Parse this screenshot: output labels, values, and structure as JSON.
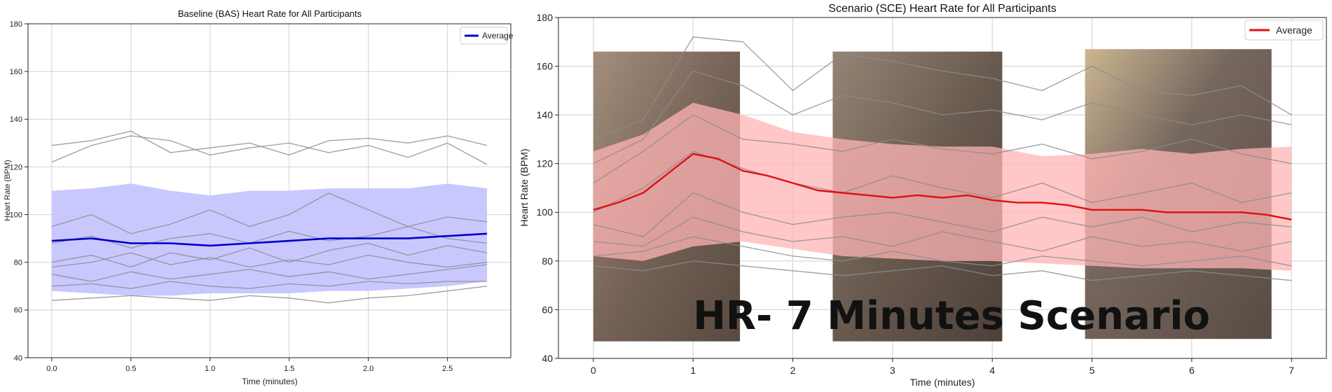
{
  "chart_data": [
    {
      "type": "line",
      "title": "Baseline (BAS) Heart Rate for All Participants",
      "xlabel": "Time (minutes)",
      "ylabel": "Heart Rate (BPM)",
      "xlim": [
        -0.15,
        2.9
      ],
      "ylim": [
        40,
        180
      ],
      "xticks": [
        0.0,
        0.5,
        1.0,
        1.5,
        2.0,
        2.5
      ],
      "xtick_labels": [
        "0.0",
        "0.5",
        "1.0",
        "1.5",
        "2.0",
        "2.5"
      ],
      "yticks": [
        40,
        60,
        80,
        100,
        120,
        140,
        160,
        180
      ],
      "ytick_labels": [
        "40",
        "60",
        "80",
        "100",
        "120",
        "140",
        "160",
        "180"
      ],
      "grid": true,
      "legend": {
        "position": "top-right",
        "entries": [
          "Average"
        ]
      },
      "colors": {
        "average": "#0000cc",
        "band": "#c8c8ff",
        "participants": "#8c8c8c"
      },
      "average": {
        "name": "Average",
        "x": [
          0.0,
          0.25,
          0.5,
          0.75,
          1.0,
          1.25,
          1.5,
          1.75,
          2.0,
          2.25,
          2.5,
          2.75
        ],
        "y": [
          89,
          90,
          88,
          88,
          87,
          88,
          89,
          90,
          90,
          90,
          91,
          92
        ]
      },
      "band": {
        "x": [
          0.0,
          0.25,
          0.5,
          0.75,
          1.0,
          1.25,
          1.5,
          1.75,
          2.0,
          2.25,
          2.5,
          2.75
        ],
        "upper": [
          110,
          111,
          113,
          110,
          108,
          110,
          110,
          111,
          111,
          111,
          113,
          111
        ],
        "lower": [
          68,
          67,
          66,
          66,
          67,
          67,
          67,
          68,
          68,
          69,
          70,
          72
        ]
      },
      "participants": [
        {
          "x": [
            0.0,
            0.25,
            0.5,
            0.75,
            1.0,
            1.25,
            1.5,
            1.75,
            2.0,
            2.25,
            2.5,
            2.75
          ],
          "y": [
            129,
            131,
            135,
            126,
            128,
            130,
            125,
            131,
            132,
            130,
            133,
            129
          ]
        },
        {
          "x": [
            0.0,
            0.25,
            0.5,
            0.75,
            1.0,
            1.25,
            1.5,
            1.75,
            2.0,
            2.25,
            2.5,
            2.75
          ],
          "y": [
            122,
            129,
            133,
            131,
            125,
            128,
            130,
            126,
            129,
            124,
            130,
            121
          ]
        },
        {
          "x": [
            0.0,
            0.25,
            0.5,
            0.75,
            1.0,
            1.25,
            1.5,
            1.75,
            2.0,
            2.25,
            2.5,
            2.75
          ],
          "y": [
            95,
            100,
            92,
            96,
            102,
            95,
            100,
            109,
            102,
            95,
            99,
            97
          ]
        },
        {
          "x": [
            0.0,
            0.25,
            0.5,
            0.75,
            1.0,
            1.25,
            1.5,
            1.75,
            2.0,
            2.25,
            2.5,
            2.75
          ],
          "y": [
            88,
            91,
            86,
            90,
            92,
            88,
            93,
            89,
            91,
            95,
            90,
            88
          ]
        },
        {
          "x": [
            0.0,
            0.25,
            0.5,
            0.75,
            1.0,
            1.25,
            1.5,
            1.75,
            2.0,
            2.25,
            2.5,
            2.75
          ],
          "y": [
            80,
            83,
            78,
            84,
            81,
            86,
            80,
            85,
            88,
            83,
            87,
            84
          ]
        },
        {
          "x": [
            0.0,
            0.25,
            0.5,
            0.75,
            1.0,
            1.25,
            1.5,
            1.75,
            2.0,
            2.25,
            2.5,
            2.75
          ],
          "y": [
            78,
            80,
            84,
            79,
            82,
            78,
            81,
            79,
            83,
            80,
            78,
            80
          ]
        },
        {
          "x": [
            0.0,
            0.25,
            0.5,
            0.75,
            1.0,
            1.25,
            1.5,
            1.75,
            2.0,
            2.25,
            2.5,
            2.75
          ],
          "y": [
            75,
            72,
            76,
            73,
            75,
            77,
            74,
            76,
            73,
            75,
            77,
            79
          ]
        },
        {
          "x": [
            0.0,
            0.25,
            0.5,
            0.75,
            1.0,
            1.25,
            1.5,
            1.75,
            2.0,
            2.25,
            2.5,
            2.75
          ],
          "y": [
            70,
            71,
            69,
            72,
            70,
            69,
            71,
            70,
            72,
            71,
            72,
            72
          ]
        },
        {
          "x": [
            0.0,
            0.25,
            0.5,
            0.75,
            1.0,
            1.25,
            1.5,
            1.75,
            2.0,
            2.25,
            2.5,
            2.75
          ],
          "y": [
            64,
            65,
            66,
            65,
            64,
            66,
            65,
            63,
            65,
            66,
            68,
            70
          ]
        }
      ]
    },
    {
      "type": "line",
      "title": "Scenario (SCE) Heart Rate for All Participants",
      "xlabel": "Time (minutes)",
      "ylabel": "Heart Rate (BPM)",
      "xlim": [
        -0.35,
        7.35
      ],
      "ylim": [
        40,
        180
      ],
      "xticks": [
        0,
        1,
        2,
        3,
        4,
        5,
        6,
        7
      ],
      "xtick_labels": [
        "0",
        "1",
        "2",
        "3",
        "4",
        "5",
        "6",
        "7"
      ],
      "yticks": [
        40,
        60,
        80,
        100,
        120,
        140,
        160,
        180
      ],
      "ytick_labels": [
        "40",
        "60",
        "80",
        "100",
        "120",
        "140",
        "160",
        "180"
      ],
      "grid": true,
      "legend": {
        "position": "top-right",
        "entries": [
          "Average"
        ]
      },
      "colors": {
        "average": "#dd1111",
        "band": "#ffb4b4",
        "participants": "#8c8c8c",
        "video_frames": "#6e5a4a"
      },
      "annotation": "HR- 7 Minutes Scenario",
      "video_frames": [
        {
          "x_start": 0.0,
          "x_end": 1.47,
          "y_top": 166,
          "y_bottom": 47
        },
        {
          "x_start": 2.4,
          "x_end": 4.1,
          "y_top": 166,
          "y_bottom": 47
        },
        {
          "x_start": 4.93,
          "x_end": 6.8,
          "y_top": 167,
          "y_bottom": 48
        }
      ],
      "average": {
        "name": "Average",
        "x": [
          0.0,
          0.25,
          0.5,
          0.75,
          1.0,
          1.25,
          1.5,
          1.75,
          2.0,
          2.25,
          2.5,
          2.75,
          3.0,
          3.25,
          3.5,
          3.75,
          4.0,
          4.25,
          4.5,
          4.75,
          5.0,
          5.25,
          5.5,
          5.75,
          6.0,
          6.25,
          6.5,
          6.75,
          7.0
        ],
        "y": [
          101,
          104,
          108,
          116,
          124,
          122,
          117,
          115,
          112,
          109,
          108,
          107,
          106,
          107,
          106,
          107,
          105,
          104,
          104,
          103,
          101,
          101,
          101,
          100,
          100,
          100,
          100,
          99,
          97
        ]
      },
      "band": {
        "x": [
          0.0,
          0.5,
          1.0,
          1.5,
          2.0,
          2.5,
          3.0,
          3.5,
          4.0,
          4.5,
          5.0,
          5.5,
          6.0,
          6.5,
          7.0
        ],
        "upper": [
          125,
          132,
          145,
          140,
          133,
          130,
          128,
          127,
          127,
          123,
          124,
          126,
          124,
          126,
          127
        ],
        "lower": [
          82,
          80,
          86,
          88,
          85,
          82,
          81,
          80,
          80,
          79,
          78,
          77,
          77,
          77,
          76
        ]
      },
      "participants": [
        {
          "x": [
            0.0,
            0.5,
            1.0,
            1.5,
            2.0,
            2.5,
            3.0,
            3.5,
            4.0,
            4.5,
            5.0,
            5.5,
            6.0,
            6.5,
            7.0
          ],
          "y": [
            130,
            138,
            172,
            170,
            150,
            165,
            162,
            158,
            155,
            150,
            160,
            150,
            148,
            152,
            140
          ]
        },
        {
          "x": [
            0.0,
            0.5,
            1.0,
            1.5,
            2.0,
            2.5,
            3.0,
            3.5,
            4.0,
            4.5,
            5.0,
            5.5,
            6.0,
            6.5,
            7.0
          ],
          "y": [
            120,
            130,
            158,
            152,
            140,
            148,
            145,
            140,
            142,
            138,
            145,
            140,
            136,
            140,
            136
          ]
        },
        {
          "x": [
            0.0,
            0.5,
            1.0,
            1.5,
            2.0,
            2.5,
            3.0,
            3.5,
            4.0,
            4.5,
            5.0,
            5.5,
            6.0,
            6.5,
            7.0
          ],
          "y": [
            112,
            125,
            140,
            130,
            128,
            125,
            130,
            126,
            124,
            128,
            122,
            125,
            130,
            124,
            120
          ]
        },
        {
          "x": [
            0.0,
            0.5,
            1.0,
            1.5,
            2.0,
            2.5,
            3.0,
            3.5,
            4.0,
            4.5,
            5.0,
            5.5,
            6.0,
            6.5,
            7.0
          ],
          "y": [
            100,
            110,
            125,
            118,
            112,
            108,
            115,
            110,
            106,
            112,
            104,
            108,
            112,
            104,
            108
          ]
        },
        {
          "x": [
            0.0,
            0.5,
            1.0,
            1.5,
            2.0,
            2.5,
            3.0,
            3.5,
            4.0,
            4.5,
            5.0,
            5.5,
            6.0,
            6.5,
            7.0
          ],
          "y": [
            95,
            90,
            108,
            100,
            95,
            98,
            100,
            96,
            92,
            98,
            94,
            98,
            92,
            96,
            94
          ]
        },
        {
          "x": [
            0.0,
            0.5,
            1.0,
            1.5,
            2.0,
            2.5,
            3.0,
            3.5,
            4.0,
            4.5,
            5.0,
            5.5,
            6.0,
            6.5,
            7.0
          ],
          "y": [
            88,
            86,
            98,
            92,
            88,
            90,
            86,
            92,
            88,
            84,
            90,
            86,
            88,
            84,
            88
          ]
        },
        {
          "x": [
            0.0,
            0.5,
            1.0,
            1.5,
            2.0,
            2.5,
            3.0,
            3.5,
            4.0,
            4.5,
            5.0,
            5.5,
            6.0,
            6.5,
            7.0
          ],
          "y": [
            82,
            84,
            90,
            86,
            82,
            80,
            84,
            80,
            78,
            82,
            80,
            78,
            80,
            82,
            78
          ]
        },
        {
          "x": [
            0.0,
            0.5,
            1.0,
            1.5,
            2.0,
            2.5,
            3.0,
            3.5,
            4.0,
            4.5,
            5.0,
            5.5,
            6.0,
            6.5,
            7.0
          ],
          "y": [
            78,
            76,
            80,
            78,
            76,
            74,
            76,
            78,
            74,
            76,
            72,
            74,
            76,
            74,
            72
          ]
        }
      ]
    }
  ]
}
